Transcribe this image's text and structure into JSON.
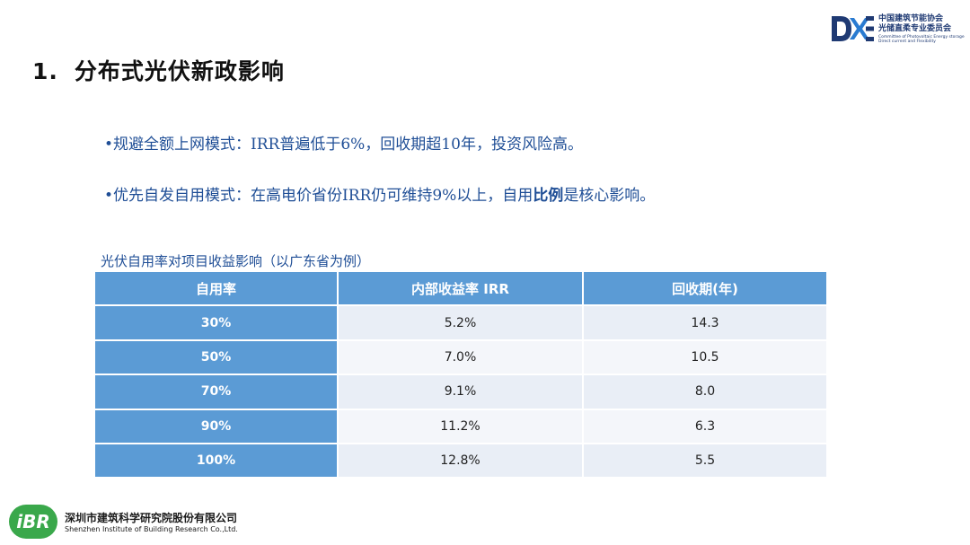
{
  "header": {
    "number": "1.",
    "title": "分布式光伏新政影响"
  },
  "org_logo": {
    "name_line1": "中国建筑节能协会",
    "name_line2": "光储直柔专业委员会",
    "name_en": "Committee of Photovoltaic Energy storage Direct current and Flexibility"
  },
  "bullets": [
    {
      "text": "•规避全额上网模式：IRR普遍低于6%，回收期超10年，投资风险高。"
    },
    {
      "pre": "•优先自发自用模式：在高电价省份IRR仍可维持9%以上，自用",
      "bold": "比例",
      "post": "是核心影响。"
    }
  ],
  "table": {
    "caption": "光伏自用率对项目收益影响（以广东省为例）",
    "headers": [
      "自用率",
      "内部收益率 IRR",
      "回收期(年)"
    ],
    "rows": [
      [
        "30%",
        "5.2%",
        "14.3"
      ],
      [
        "50%",
        "7.0%",
        "10.5"
      ],
      [
        "70%",
        "9.1%",
        "8.0"
      ],
      [
        "90%",
        "11.2%",
        "6.3"
      ],
      [
        "100%",
        "12.8%",
        "5.5"
      ]
    ]
  },
  "footer": {
    "logo_text": "iBR",
    "company_cn": "深圳市建筑科学研究院股份有限公司",
    "company_en": "Shenzhen Institute of Building Research Co.,Ltd."
  },
  "colors": {
    "accent_blue": "#5b9bd5",
    "text_blue": "#1f4e96",
    "logo_green": "#3aa84b",
    "logo_navy": "#1f3a73"
  }
}
